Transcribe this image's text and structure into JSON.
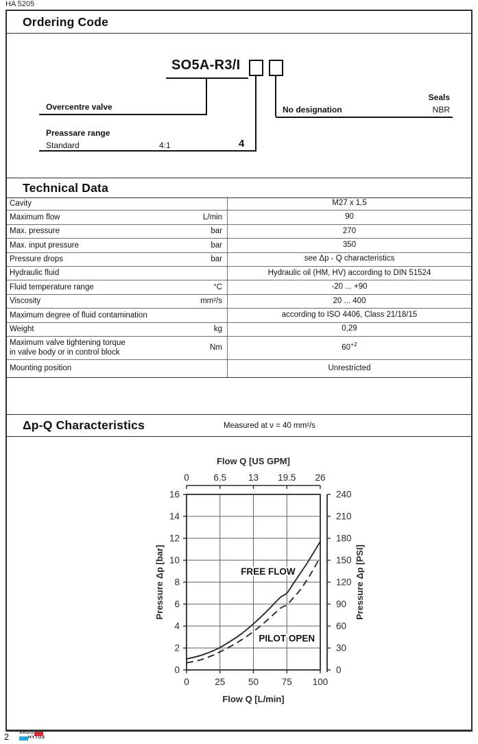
{
  "doc_number": "HA 5205",
  "page_number": "2",
  "logo": {
    "line1": "ARGO",
    "line2": "HYTOS",
    "red_color": "#e5282c",
    "blue_color": "#2aa5dc"
  },
  "ordering": {
    "title": "Ordering Code",
    "code": "SO5A-R3/I",
    "overcentre_label": "Overcentre valve",
    "pressure_range_title": "Preassare range",
    "pressure_range_name": "Standard",
    "pressure_range_ratio": "4:1",
    "pressure_range_digit": "4",
    "seals_title": "Seals",
    "no_designation_label": "No designation",
    "seal_value": "NBR"
  },
  "technical": {
    "title": "Technical Data",
    "rows": [
      {
        "label": [
          "Cavity"
        ],
        "unit": "",
        "value": "M27 x 1,5",
        "sup": ""
      },
      {
        "label": [
          "Maximum flow"
        ],
        "unit": "L/min",
        "value": "90",
        "sup": ""
      },
      {
        "label": [
          "Max. pressure"
        ],
        "unit": "bar",
        "value": "270",
        "sup": ""
      },
      {
        "label": [
          "Max. input pressure"
        ],
        "unit": "bar",
        "value": "350",
        "sup": ""
      },
      {
        "label": [
          "Pressure drops"
        ],
        "unit": "bar",
        "value": "see Δp - Q  characteristics",
        "sup": ""
      },
      {
        "label": [
          "Hydraulic fluid"
        ],
        "unit": "",
        "value": "Hydraulic oil (HM, HV) according to DIN 51524",
        "sup": ""
      },
      {
        "label": [
          "Fluid temperature range"
        ],
        "unit": "°C",
        "value": "-20 ... +90",
        "sup": ""
      },
      {
        "label": [
          "Viscosity"
        ],
        "unit": "mm²/s",
        "value": "20 ... 400",
        "sup": ""
      },
      {
        "label": [
          "Maximum degree of fluid contamination"
        ],
        "unit": "",
        "value": "according to ISO 4406, Class 21/18/15",
        "sup": ""
      },
      {
        "label": [
          "Weight"
        ],
        "unit": "kg",
        "value": "0,29",
        "sup": ""
      },
      {
        "label": [
          "Maximum valve tightening torque",
          "in valve body or in control block"
        ],
        "unit": "Nm",
        "value": "60",
        "sup": "+2",
        "tall": true
      },
      {
        "label": [
          "Mounting position"
        ],
        "unit": "",
        "value": "Unrestricted",
        "sup": ""
      }
    ]
  },
  "chart_section": {
    "title": "Δp-Q Characteristics",
    "subtitle": "Measured at ν = 40 mm²/s"
  },
  "chart_data": {
    "type": "line",
    "grid": true,
    "x_bottom": {
      "label": "Flow Q [L/min]",
      "ticks": [
        0,
        25,
        50,
        75,
        100
      ],
      "range": [
        0,
        100
      ]
    },
    "x_top": {
      "label": "Flow Q [US GPM]",
      "ticks": [
        "0",
        "6.5",
        "13",
        "19.5",
        "26"
      ]
    },
    "y_left": {
      "label": "Pressure Δp [bar]",
      "ticks": [
        0,
        2,
        4,
        6,
        8,
        10,
        12,
        14,
        16
      ],
      "range": [
        0,
        16
      ]
    },
    "y_right": {
      "label": "Pressure Δp [PSI]",
      "ticks": [
        0,
        30,
        60,
        90,
        120,
        150,
        180,
        210,
        240
      ],
      "range": [
        0,
        240
      ]
    },
    "series": [
      {
        "name": "FREE FLOW",
        "style": "solid",
        "label_pos": {
          "x": 61,
          "y": 9.0
        },
        "points": [
          [
            0,
            1.0
          ],
          [
            10,
            1.3
          ],
          [
            20,
            1.75
          ],
          [
            25,
            2.05
          ],
          [
            30,
            2.4
          ],
          [
            40,
            3.2
          ],
          [
            50,
            4.2
          ],
          [
            60,
            5.35
          ],
          [
            70,
            6.6
          ],
          [
            75,
            7.0
          ],
          [
            80,
            7.9
          ],
          [
            85,
            8.8
          ],
          [
            90,
            9.7
          ],
          [
            95,
            10.7
          ],
          [
            100,
            11.7
          ]
        ]
      },
      {
        "name": "PILOT OPEN",
        "style": "dashed",
        "label_pos": {
          "x": 75,
          "y": 2.9
        },
        "points": [
          [
            0,
            0.65
          ],
          [
            10,
            0.9
          ],
          [
            20,
            1.35
          ],
          [
            25,
            1.65
          ],
          [
            30,
            1.95
          ],
          [
            40,
            2.65
          ],
          [
            50,
            3.5
          ],
          [
            60,
            4.5
          ],
          [
            70,
            5.6
          ],
          [
            75,
            5.95
          ],
          [
            80,
            6.6
          ],
          [
            85,
            7.3
          ],
          [
            90,
            8.2
          ],
          [
            95,
            9.2
          ],
          [
            100,
            10.3
          ]
        ]
      }
    ]
  }
}
